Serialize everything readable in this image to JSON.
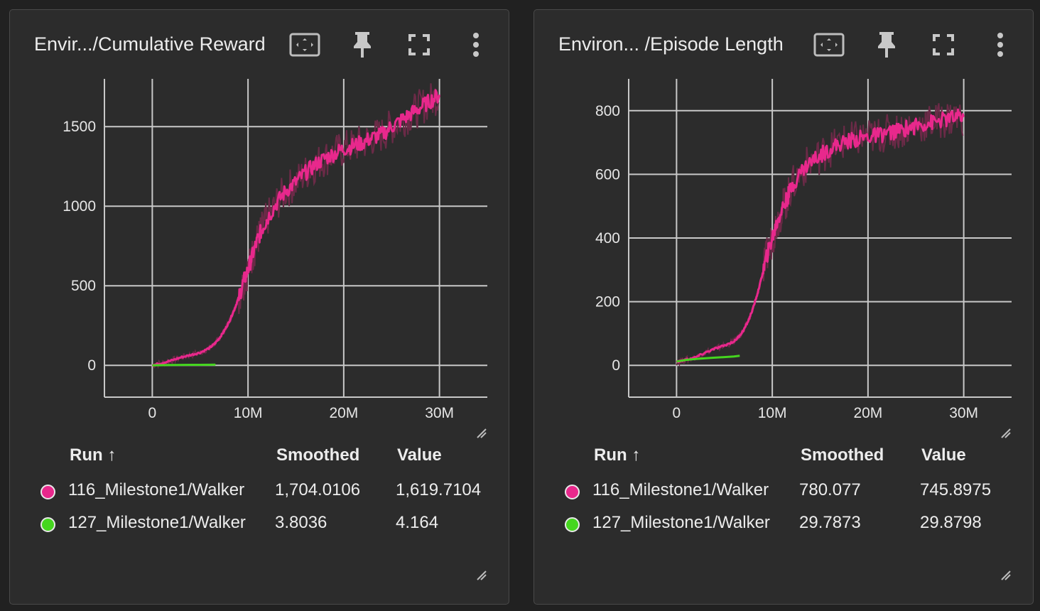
{
  "colors": {
    "run116": "#e8288c",
    "run116_raw": "#6b2a47",
    "run127": "#45d61f",
    "grid": "#c8c8c8",
    "card_bg": "#2c2c2c"
  },
  "cards": [
    {
      "title": "Envir.../Cumulative Reward",
      "legend": {
        "col_run": "Run ↑",
        "col_smoothed": "Smoothed",
        "col_value": "Value",
        "rows": [
          {
            "run": "116_Milestone1/Walker",
            "smoothed": "1,704.0106",
            "value": "1,619.7104"
          },
          {
            "run": "127_Milestone1/Walker",
            "smoothed": "3.8036",
            "value": "4.164"
          }
        ]
      },
      "chart_data": {
        "type": "line",
        "title": "Envir.../Cumulative Reward",
        "xlim": [
          -5000000,
          35000000
        ],
        "ylim": [
          -200,
          1800
        ],
        "x_ticks": [
          0,
          10000000,
          20000000,
          30000000
        ],
        "x_tick_labels": [
          "0",
          "10M",
          "20M",
          "30M"
        ],
        "y_ticks": [
          0,
          500,
          1000,
          1500
        ],
        "y_tick_labels": [
          "0",
          "500",
          "1000",
          "1500"
        ],
        "grid": true,
        "series": [
          {
            "name": "116_Milestone1/Walker",
            "color": "#e8288c",
            "x": [
              0,
              1000000,
              2000000,
              3000000,
              4000000,
              5000000,
              6000000,
              6500000,
              7000000,
              7500000,
              8000000,
              8500000,
              9000000,
              9500000,
              10000000,
              10500000,
              11000000,
              11500000,
              12000000,
              13000000,
              14000000,
              15000000,
              16000000,
              17000000,
              18000000,
              19000000,
              20000000,
              21000000,
              22000000,
              23000000,
              24000000,
              25000000,
              26000000,
              27000000,
              28000000,
              29000000,
              30000000
            ],
            "y": [
              0,
              15,
              30,
              50,
              65,
              80,
              110,
              135,
              170,
              215,
              270,
              340,
              420,
              520,
              600,
              700,
              790,
              860,
              920,
              1020,
              1100,
              1150,
              1210,
              1260,
              1300,
              1330,
              1360,
              1380,
              1400,
              1430,
              1450,
              1500,
              1540,
              1580,
              1620,
              1660,
              1700
            ]
          },
          {
            "name": "127_Milestone1/Walker",
            "color": "#45d61f",
            "x": [
              0,
              1000000,
              2000000,
              3000000,
              4000000,
              5000000,
              6000000,
              6600000
            ],
            "y": [
              0,
              1,
              2,
              2.5,
              3,
              3.3,
              3.6,
              3.8
            ]
          }
        ]
      }
    },
    {
      "title": "Environ...   /Episode Length",
      "legend": {
        "col_run": "Run ↑",
        "col_smoothed": "Smoothed",
        "col_value": "Value",
        "rows": [
          {
            "run": "116_Milestone1/Walker",
            "smoothed": "780.077",
            "value": "745.8975"
          },
          {
            "run": "127_Milestone1/Walker",
            "smoothed": "29.7873",
            "value": "29.8798"
          }
        ]
      },
      "chart_data": {
        "type": "line",
        "title": "Environ...   /Episode Length",
        "xlim": [
          -5000000,
          35000000
        ],
        "ylim": [
          -100,
          900
        ],
        "x_ticks": [
          0,
          10000000,
          20000000,
          30000000
        ],
        "x_tick_labels": [
          "0",
          "10M",
          "20M",
          "30M"
        ],
        "y_ticks": [
          0,
          200,
          400,
          600,
          800
        ],
        "y_tick_labels": [
          "0",
          "200",
          "400",
          "600",
          "800"
        ],
        "grid": true,
        "series": [
          {
            "name": "116_Milestone1/Walker",
            "color": "#e8288c",
            "x": [
              0,
              1000000,
              2000000,
              3000000,
              4000000,
              5000000,
              6000000,
              6500000,
              7000000,
              7500000,
              8000000,
              8500000,
              9000000,
              9500000,
              10000000,
              10500000,
              11000000,
              11500000,
              12000000,
              13000000,
              14000000,
              15000000,
              16000000,
              17000000,
              18000000,
              19000000,
              20000000,
              21000000,
              22000000,
              23000000,
              24000000,
              25000000,
              26000000,
              27000000,
              28000000,
              29000000,
              30000000
            ],
            "y": [
              10,
              18,
              25,
              40,
              52,
              62,
              75,
              90,
              110,
              140,
              180,
              230,
              290,
              350,
              400,
              450,
              490,
              520,
              560,
              610,
              640,
              660,
              680,
              695,
              705,
              712,
              718,
              722,
              730,
              735,
              745,
              752,
              760,
              765,
              772,
              778,
              780
            ]
          },
          {
            "name": "127_Milestone1/Walker",
            "color": "#45d61f",
            "x": [
              0,
              1000000,
              2000000,
              3000000,
              4000000,
              5000000,
              6000000,
              6600000
            ],
            "y": [
              12,
              17,
              20,
              22,
              24,
              26,
              28,
              30
            ]
          }
        ]
      }
    }
  ]
}
